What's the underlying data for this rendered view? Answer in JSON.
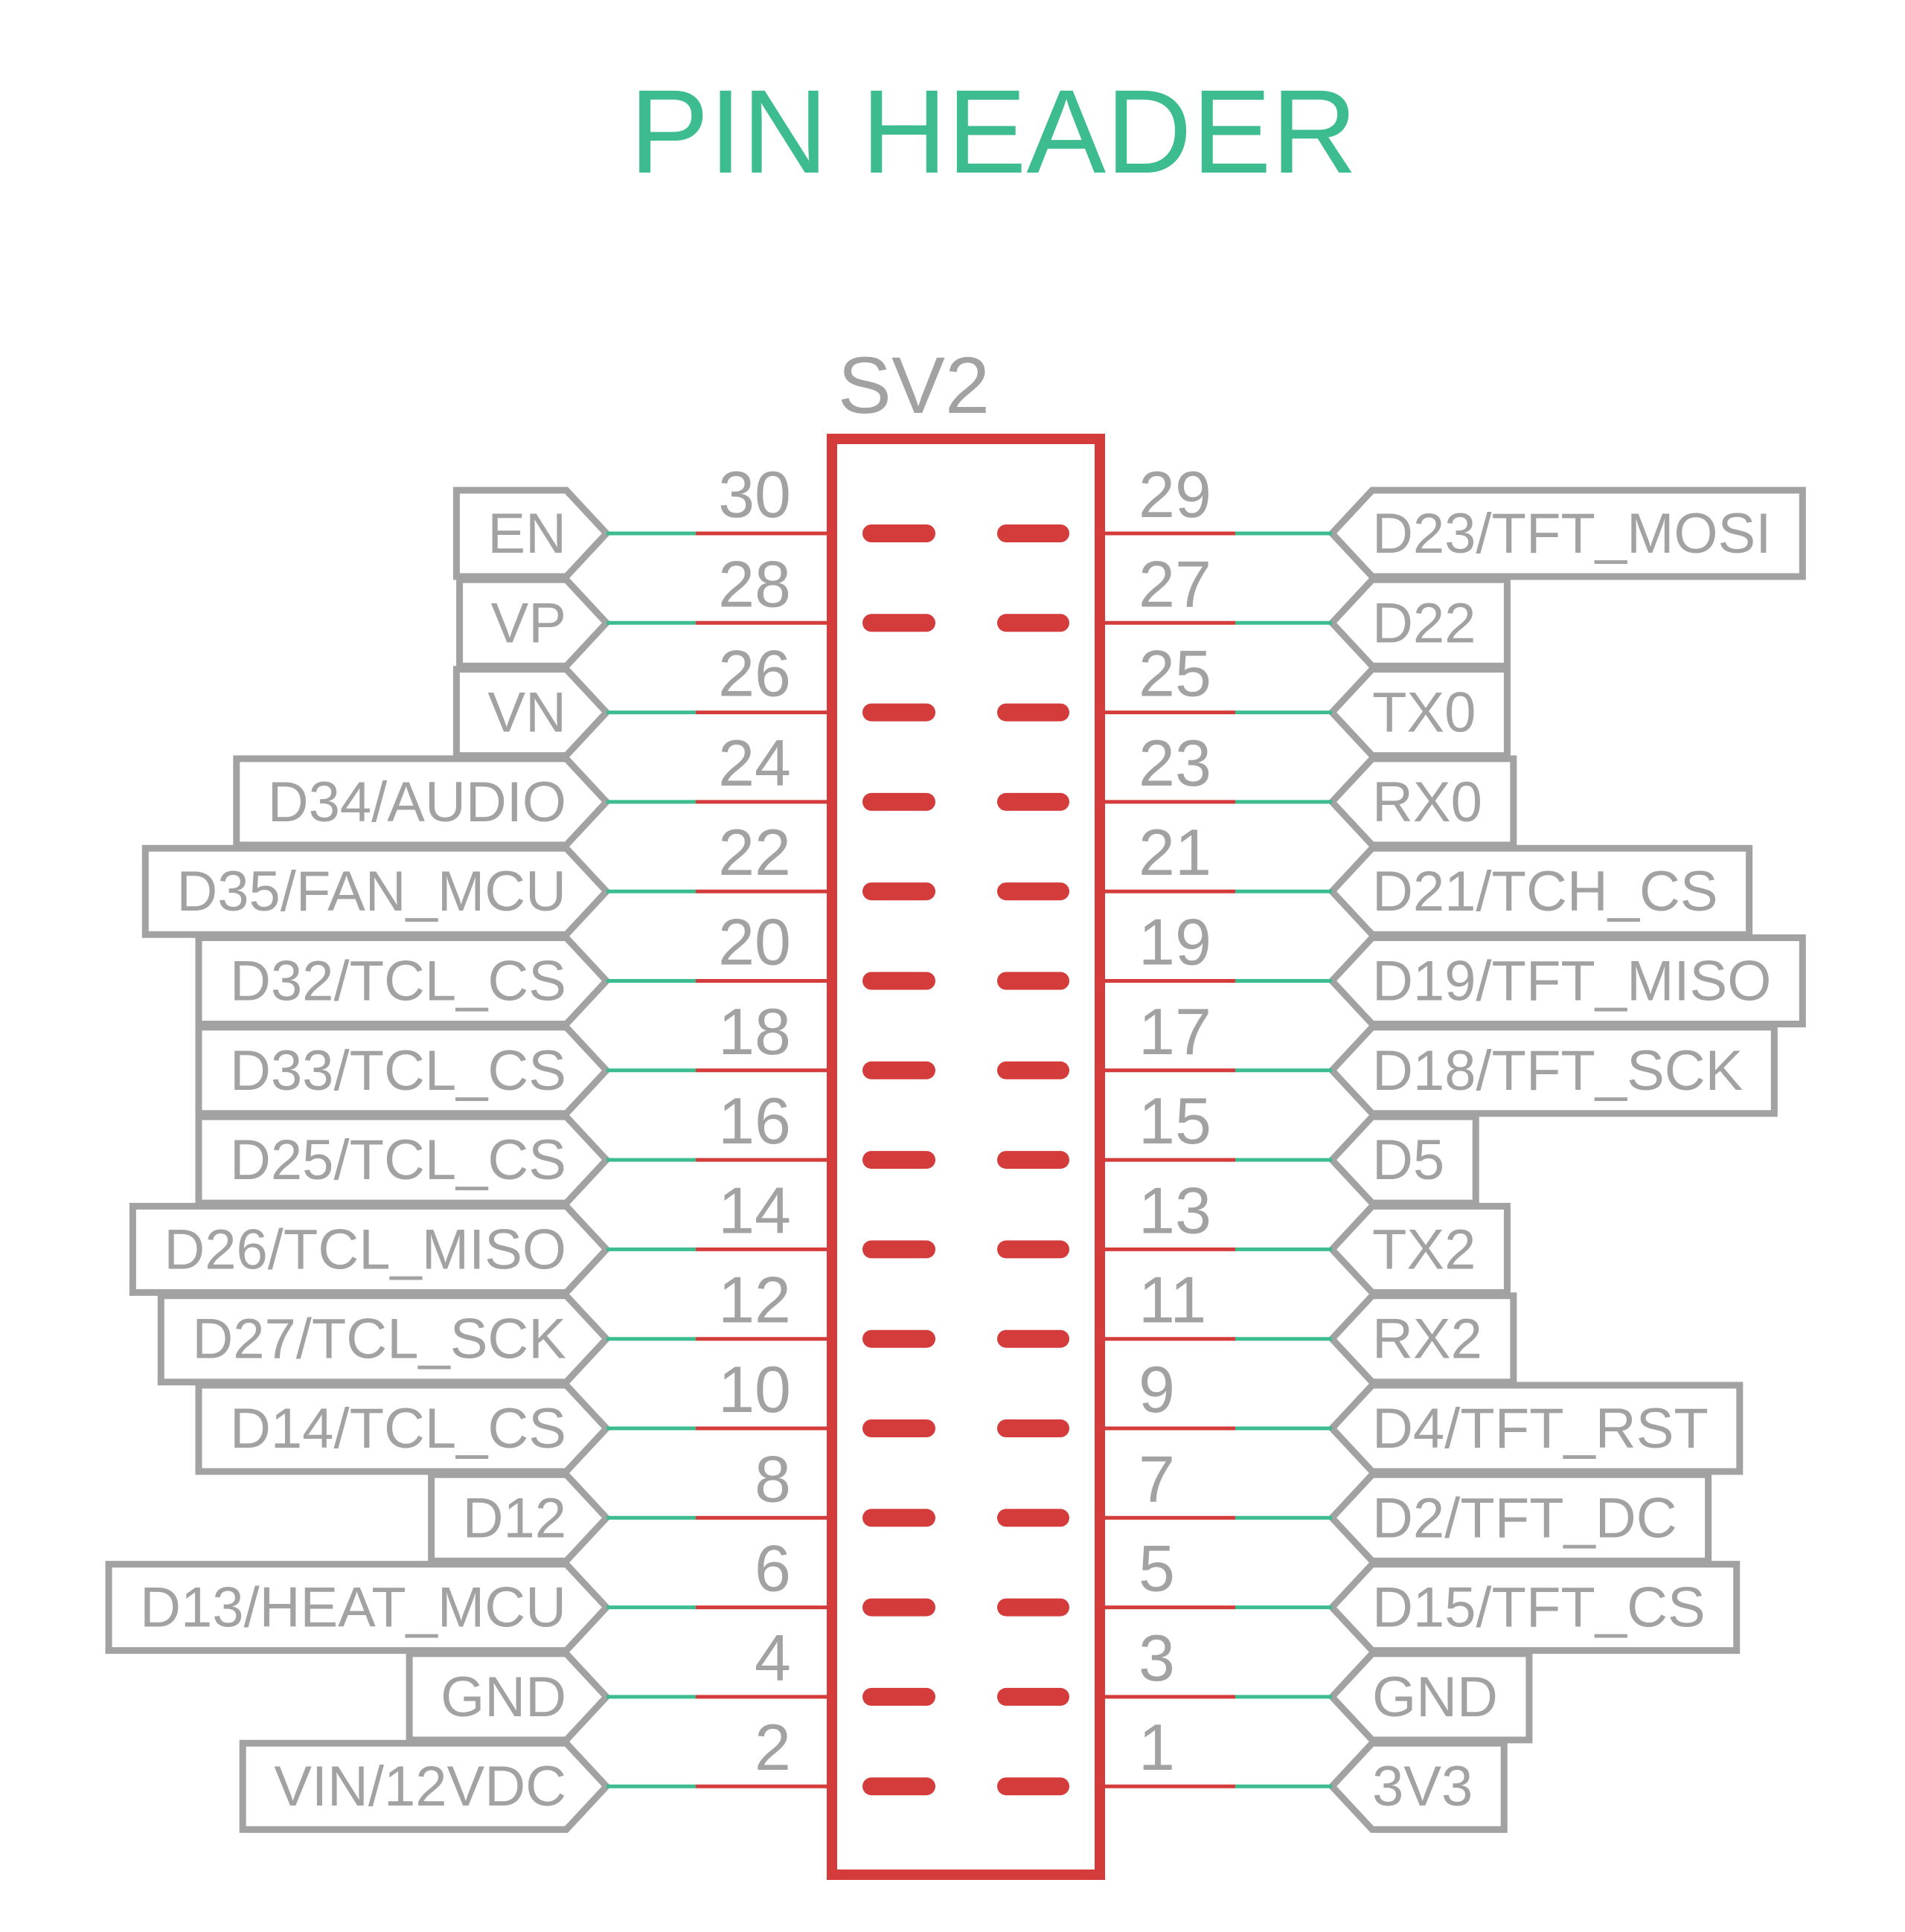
{
  "title": "PIN HEADER",
  "component": {
    "name": "SV2"
  },
  "colors": {
    "title": "#3dbd8f",
    "text": "#a2a2a2",
    "body": "#d43c3c",
    "wire": "#3dbd8f",
    "flag": "#a2a2a2",
    "background": "#ffffff"
  },
  "pins": {
    "left": [
      {
        "number": "30",
        "net": "EN"
      },
      {
        "number": "28",
        "net": "VP"
      },
      {
        "number": "26",
        "net": "VN"
      },
      {
        "number": "24",
        "net": "D34/AUDIO"
      },
      {
        "number": "22",
        "net": "D35/FAN_MCU"
      },
      {
        "number": "20",
        "net": "D32/TCL_CS"
      },
      {
        "number": "18",
        "net": "D33/TCL_CS"
      },
      {
        "number": "16",
        "net": "D25/TCL_CS"
      },
      {
        "number": "14",
        "net": "D26/TCL_MISO"
      },
      {
        "number": "12",
        "net": "D27/TCL_SCK"
      },
      {
        "number": "10",
        "net": "D14/TCL_CS"
      },
      {
        "number": "8",
        "net": "D12"
      },
      {
        "number": "6",
        "net": "D13/HEAT_MCU"
      },
      {
        "number": "4",
        "net": "GND"
      },
      {
        "number": "2",
        "net": "VIN/12VDC"
      }
    ],
    "right": [
      {
        "number": "29",
        "net": "D23/TFT_MOSI"
      },
      {
        "number": "27",
        "net": "D22"
      },
      {
        "number": "25",
        "net": "TX0"
      },
      {
        "number": "23",
        "net": "RX0"
      },
      {
        "number": "21",
        "net": "D21/TCH_CS"
      },
      {
        "number": "19",
        "net": "D19/TFT_MISO"
      },
      {
        "number": "17",
        "net": "D18/TFT_SCK"
      },
      {
        "number": "15",
        "net": "D5"
      },
      {
        "number": "13",
        "net": "TX2"
      },
      {
        "number": "11",
        "net": "RX2"
      },
      {
        "number": "9",
        "net": "D4/TFT_RST"
      },
      {
        "number": "7",
        "net": "D2/TFT_DC"
      },
      {
        "number": "5",
        "net": "D15/TFT_CS"
      },
      {
        "number": "3",
        "net": "GND"
      },
      {
        "number": "1",
        "net": "3V3"
      }
    ]
  }
}
